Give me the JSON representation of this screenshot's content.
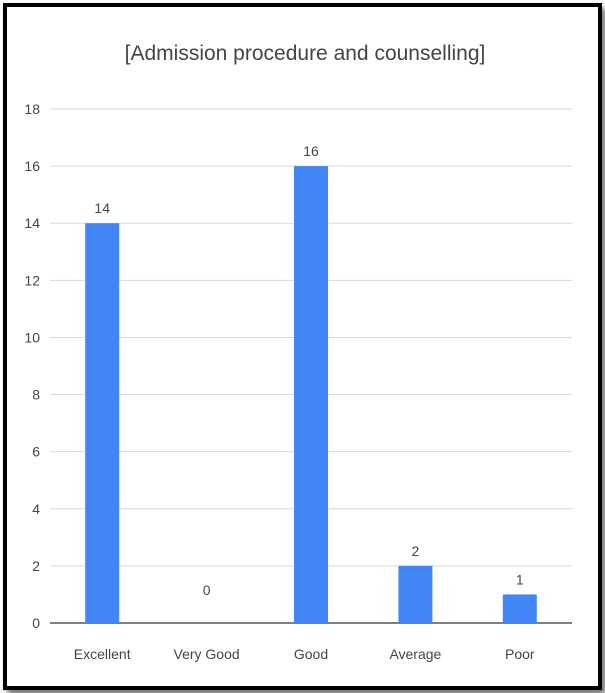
{
  "chart_data": {
    "type": "bar",
    "title": "[Admission procedure and counselling]",
    "xlabel": "",
    "ylabel": "",
    "categories": [
      "Excellent",
      "Very Good",
      "Good",
      "Average",
      "Poor"
    ],
    "values": [
      14,
      0,
      16,
      2,
      1
    ],
    "ylim": [
      0,
      18
    ],
    "yticks": [
      0,
      2,
      4,
      6,
      8,
      10,
      12,
      14,
      16,
      18
    ],
    "grid": true,
    "legend": "none",
    "bar_color": "#4285f4",
    "grid_color": "#d9d9d9",
    "text_color": "#444444"
  }
}
